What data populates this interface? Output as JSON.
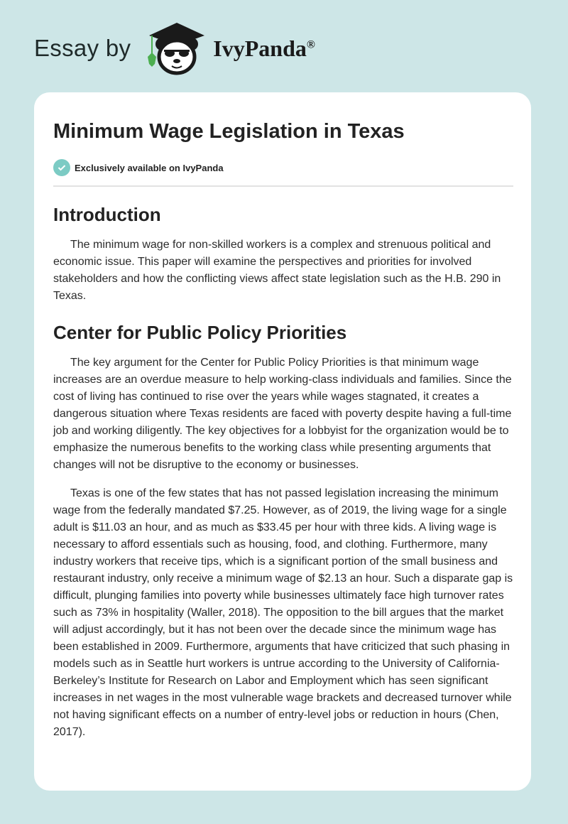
{
  "header": {
    "essay_by": "Essay by",
    "brand": "IvyPanda",
    "registered": "®"
  },
  "article": {
    "title": "Minimum Wage Legislation in Texas",
    "badge": "Exclusively available on IvyPanda",
    "sections": [
      {
        "heading": "Introduction",
        "paragraphs": [
          "The minimum wage for non-skilled workers is a complex and strenuous political and economic issue. This paper will examine the perspectives and priorities for involved stakeholders and how the conflicting views affect state legislation such as the H.B. 290 in Texas."
        ]
      },
      {
        "heading": "Center for Public Policy Priorities",
        "paragraphs": [
          "The key argument for the Center for Public Policy Priorities is that minimum wage increases are an overdue measure to help working-class individuals and families. Since the cost of living has continued to rise over the years while wages stagnated, it creates a dangerous situation where Texas residents are faced with poverty despite having a full-time job and working diligently. The key objectives for a lobbyist for the organization would be to emphasize the numerous benefits to the working class while presenting arguments that changes will not be disruptive to the economy or businesses.",
          "Texas is one of the few states that has not passed legislation increasing the minimum wage from the federally mandated $7.25. However, as of 2019, the living wage for a single adult is $11.03 an hour, and as much as $33.45 per hour with three kids. A living wage is necessary to afford essentials such as housing, food, and clothing. Furthermore, many industry workers that receive tips, which is a significant portion of the small business and restaurant industry, only receive a minimum wage of $2.13 an hour. Such a disparate gap is difficult, plunging families into poverty while businesses ultimately face high turnover rates such as 73% in hospitality (Waller, 2018). The opposition to the bill argues that the market will adjust accordingly, but it has not been over the decade since the minimum wage has been established in 2009. Furthermore, arguments that have criticized that such phasing in models such as in Seattle hurt workers is untrue according to the University of California-Berkeley’s Institute for Research on Labor and Employment which has seen significant increases in net wages in the most vulnerable wage brackets and decreased turnover while not having significant effects on a number of entry-level jobs or reduction in hours (Chen, 2017)."
        ]
      }
    ]
  },
  "colors": {
    "background": "#cde6e7",
    "badge_check": "#7ccbc4",
    "ivy_green": "#4caf50"
  }
}
